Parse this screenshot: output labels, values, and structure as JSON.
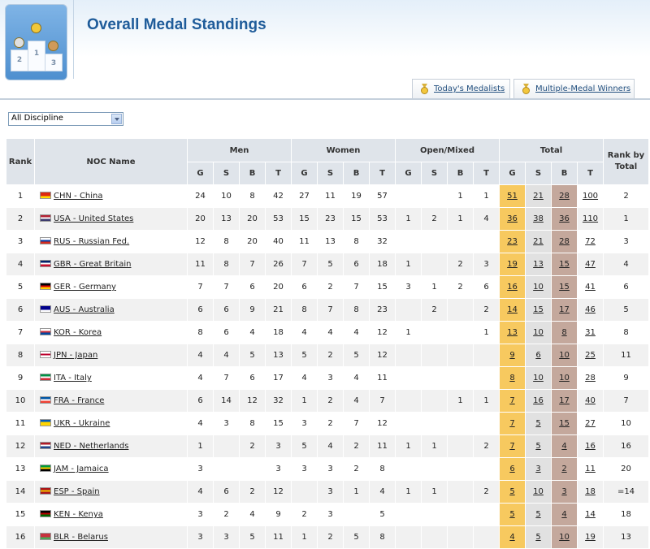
{
  "header": {
    "title": "Overall Medal Standings"
  },
  "logo": {
    "icon": "podium-medals-icon",
    "podium_labels": [
      "2",
      "1",
      "3"
    ]
  },
  "tabs": [
    {
      "label": "Today's Medalists",
      "icon": "medal-icon"
    },
    {
      "label": "Multiple-Medal Winners",
      "icon": "medal-icon"
    }
  ],
  "filter": {
    "selected": "All Discipline"
  },
  "table": {
    "col_rank": "Rank",
    "col_noc": "NOC Name",
    "groups": [
      "Men",
      "Women",
      "Open/Mixed",
      "Total"
    ],
    "col_rank_by_total": "Rank by Total",
    "sub": [
      "G",
      "S",
      "B",
      "T"
    ],
    "rows": [
      {
        "rank": "1",
        "noc": "CHN - China",
        "men": [
          "24",
          "10",
          "8",
          "42"
        ],
        "women": [
          "27",
          "11",
          "19",
          "57"
        ],
        "mixed": [
          "",
          "",
          "1",
          "1"
        ],
        "total": [
          "51",
          "21",
          "28",
          "100"
        ],
        "rbt": "2"
      },
      {
        "rank": "2",
        "noc": "USA - United States",
        "men": [
          "20",
          "13",
          "20",
          "53"
        ],
        "women": [
          "15",
          "23",
          "15",
          "53"
        ],
        "mixed": [
          "1",
          "2",
          "1",
          "4"
        ],
        "total": [
          "36",
          "38",
          "36",
          "110"
        ],
        "rbt": "1"
      },
      {
        "rank": "3",
        "noc": "RUS - Russian Fed.",
        "men": [
          "12",
          "8",
          "20",
          "40"
        ],
        "women": [
          "11",
          "13",
          "8",
          "32"
        ],
        "mixed": [
          "",
          "",
          "",
          ""
        ],
        "total": [
          "23",
          "21",
          "28",
          "72"
        ],
        "rbt": "3"
      },
      {
        "rank": "4",
        "noc": "GBR - Great Britain",
        "men": [
          "11",
          "8",
          "7",
          "26"
        ],
        "women": [
          "7",
          "5",
          "6",
          "18"
        ],
        "mixed": [
          "1",
          "",
          "2",
          "3"
        ],
        "total": [
          "19",
          "13",
          "15",
          "47"
        ],
        "rbt": "4"
      },
      {
        "rank": "5",
        "noc": "GER - Germany",
        "men": [
          "7",
          "7",
          "6",
          "20"
        ],
        "women": [
          "6",
          "2",
          "7",
          "15"
        ],
        "mixed": [
          "3",
          "1",
          "2",
          "6"
        ],
        "total": [
          "16",
          "10",
          "15",
          "41"
        ],
        "rbt": "6"
      },
      {
        "rank": "6",
        "noc": "AUS - Australia",
        "men": [
          "6",
          "6",
          "9",
          "21"
        ],
        "women": [
          "8",
          "7",
          "8",
          "23"
        ],
        "mixed": [
          "",
          "2",
          "",
          "2"
        ],
        "total": [
          "14",
          "15",
          "17",
          "46"
        ],
        "rbt": "5"
      },
      {
        "rank": "7",
        "noc": "KOR - Korea",
        "men": [
          "8",
          "6",
          "4",
          "18"
        ],
        "women": [
          "4",
          "4",
          "4",
          "12"
        ],
        "mixed": [
          "1",
          "",
          "",
          "1"
        ],
        "total": [
          "13",
          "10",
          "8",
          "31"
        ],
        "rbt": "8"
      },
      {
        "rank": "8",
        "noc": "JPN - Japan",
        "men": [
          "4",
          "4",
          "5",
          "13"
        ],
        "women": [
          "5",
          "2",
          "5",
          "12"
        ],
        "mixed": [
          "",
          "",
          "",
          ""
        ],
        "total": [
          "9",
          "6",
          "10",
          "25"
        ],
        "rbt": "11"
      },
      {
        "rank": "9",
        "noc": "ITA - Italy",
        "men": [
          "4",
          "7",
          "6",
          "17"
        ],
        "women": [
          "4",
          "3",
          "4",
          "11"
        ],
        "mixed": [
          "",
          "",
          "",
          ""
        ],
        "total": [
          "8",
          "10",
          "10",
          "28"
        ],
        "rbt": "9"
      },
      {
        "rank": "10",
        "noc": "FRA - France",
        "men": [
          "6",
          "14",
          "12",
          "32"
        ],
        "women": [
          "1",
          "2",
          "4",
          "7"
        ],
        "mixed": [
          "",
          "",
          "1",
          "1"
        ],
        "total": [
          "7",
          "16",
          "17",
          "40"
        ],
        "rbt": "7"
      },
      {
        "rank": "11",
        "noc": "UKR - Ukraine",
        "men": [
          "4",
          "3",
          "8",
          "15"
        ],
        "women": [
          "3",
          "2",
          "7",
          "12"
        ],
        "mixed": [
          "",
          "",
          "",
          ""
        ],
        "total": [
          "7",
          "5",
          "15",
          "27"
        ],
        "rbt": "10"
      },
      {
        "rank": "12",
        "noc": "NED - Netherlands",
        "men": [
          "1",
          "",
          "2",
          "3"
        ],
        "women": [
          "5",
          "4",
          "2",
          "11"
        ],
        "mixed": [
          "1",
          "1",
          "",
          "2"
        ],
        "total": [
          "7",
          "5",
          "4",
          "16"
        ],
        "rbt": "16"
      },
      {
        "rank": "13",
        "noc": "JAM - Jamaica",
        "men": [
          "3",
          "",
          "",
          "3"
        ],
        "women": [
          "3",
          "3",
          "2",
          "8"
        ],
        "mixed": [
          "",
          "",
          "",
          ""
        ],
        "total": [
          "6",
          "3",
          "2",
          "11"
        ],
        "rbt": "20"
      },
      {
        "rank": "14",
        "noc": "ESP - Spain",
        "men": [
          "4",
          "6",
          "2",
          "12"
        ],
        "women": [
          "",
          "3",
          "1",
          "4"
        ],
        "mixed": [
          "1",
          "1",
          "",
          "2"
        ],
        "total": [
          "5",
          "10",
          "3",
          "18"
        ],
        "rbt": "=14"
      },
      {
        "rank": "15",
        "noc": "KEN - Kenya",
        "men": [
          "3",
          "2",
          "4",
          "9"
        ],
        "women": [
          "2",
          "3",
          "",
          "5"
        ],
        "mixed": [
          "",
          "",
          "",
          ""
        ],
        "total": [
          "5",
          "5",
          "4",
          "14"
        ],
        "rbt": "18"
      },
      {
        "rank": "16",
        "noc": "BLR - Belarus",
        "men": [
          "3",
          "3",
          "5",
          "11"
        ],
        "women": [
          "1",
          "2",
          "5",
          "8"
        ],
        "mixed": [
          "",
          "",
          "",
          ""
        ],
        "total": [
          "4",
          "5",
          "10",
          "19"
        ],
        "rbt": "13"
      }
    ]
  },
  "flags": {
    "CHN": [
      "#de2910",
      "#de2910",
      "#ffde00"
    ],
    "USA": [
      "#b22234",
      "#ffffff",
      "#3c3b6e"
    ],
    "RUS": [
      "#ffffff",
      "#0039a6",
      "#d52b1e"
    ],
    "GBR": [
      "#012169",
      "#ffffff",
      "#c8102e"
    ],
    "GER": [
      "#000000",
      "#dd0000",
      "#ffce00"
    ],
    "AUS": [
      "#00008b",
      "#00008b",
      "#ffffff"
    ],
    "KOR": [
      "#ffffff",
      "#cd2e3a",
      "#0047a0"
    ],
    "JPN": [
      "#ffffff",
      "#bc002d",
      "#ffffff"
    ],
    "ITA": [
      "#009246",
      "#ffffff",
      "#ce2b37"
    ],
    "FRA": [
      "#0055a4",
      "#ffffff",
      "#ef4135"
    ],
    "UKR": [
      "#005bbb",
      "#ffd500",
      "#ffd500"
    ],
    "NED": [
      "#ae1c28",
      "#ffffff",
      "#21468b"
    ],
    "JAM": [
      "#009b3a",
      "#fed100",
      "#000000"
    ],
    "ESP": [
      "#aa151b",
      "#f1bf00",
      "#aa151b"
    ],
    "KEN": [
      "#000000",
      "#bb0000",
      "#006600"
    ],
    "BLR": [
      "#c8313e",
      "#c8313e",
      "#4aa657"
    ]
  }
}
